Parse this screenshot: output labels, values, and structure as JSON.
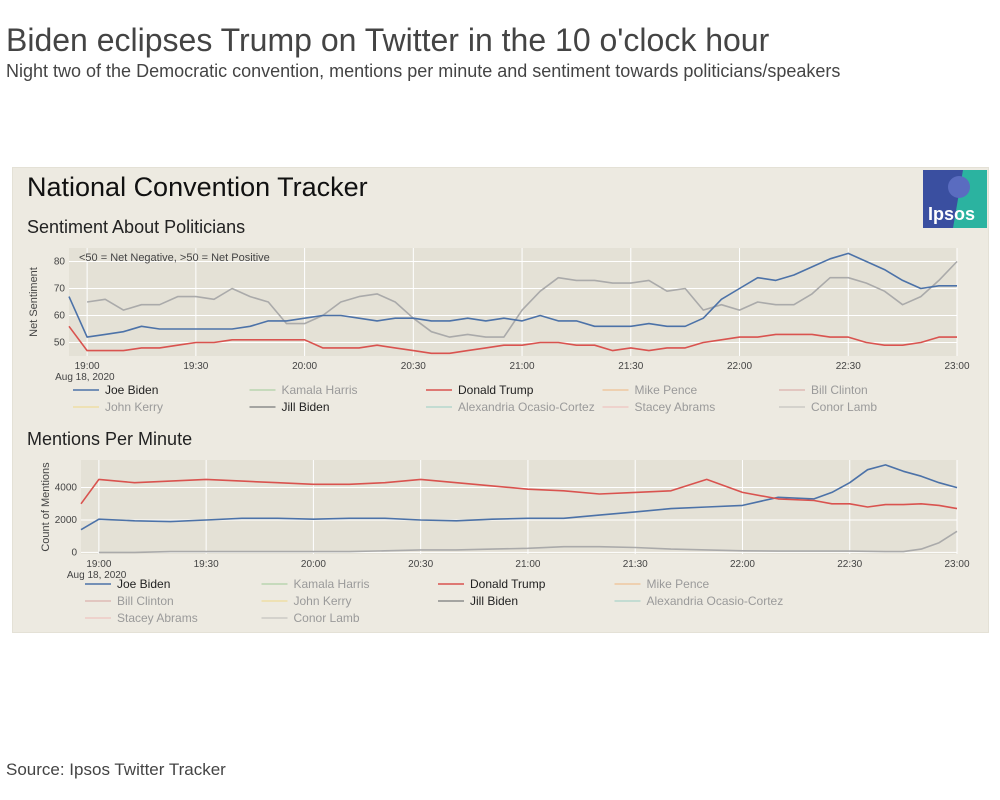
{
  "headline": "Biden eclipses Trump on Twitter in the 10 o'clock hour",
  "subhead": "Night two of the Democratic convention, mentions per minute and sentiment towards politicians/speakers",
  "source": "Source: Ipsos Twitter Tracker",
  "panel": {
    "title": "National Convention Tracker",
    "logo_text": "Ipsos",
    "logo_colors": [
      "#3a4fa0",
      "#2bb3a0"
    ]
  },
  "chart_data": [
    {
      "type": "line",
      "title": "Sentiment About Politicians",
      "ylabel": "Net Sentiment",
      "xlabel": "",
      "date_label": "Aug 18, 2020",
      "annotation": "<50 = Net Negative, >50 = Net Positive",
      "x_ticks": [
        "19:00",
        "19:30",
        "20:00",
        "20:30",
        "21:00",
        "21:30",
        "22:00",
        "22:30",
        "23:00"
      ],
      "x_range_minutes": [
        -5,
        240
      ],
      "ylim": [
        45,
        85
      ],
      "y_ticks": [
        50,
        60,
        70,
        80
      ],
      "grid": true,
      "legend_position": "bottom",
      "legend": [
        {
          "name": "Joe Biden",
          "color": "#4c72a8",
          "active": true
        },
        {
          "name": "Kamala Harris",
          "color": "#86c27e",
          "active": false
        },
        {
          "name": "Donald Trump",
          "color": "#d9534f",
          "active": true
        },
        {
          "name": "Mike Pence",
          "color": "#f0a860",
          "active": false
        },
        {
          "name": "Bill Clinton",
          "color": "#d08a8a",
          "active": false
        },
        {
          "name": "John Kerry",
          "color": "#f2d36b",
          "active": false
        },
        {
          "name": "Jill Biden",
          "color": "#8c8c8c",
          "active": true
        },
        {
          "name": "Alexandria Ocasio-Cortez",
          "color": "#7fc7b8",
          "active": false
        },
        {
          "name": "Stacey Abrams",
          "color": "#f2a9a9",
          "active": false
        },
        {
          "name": "Conor Lamb",
          "color": "#aaaaaa",
          "active": false
        }
      ],
      "series": [
        {
          "name": "Joe Biden",
          "color": "#4c72a8",
          "x": [
            -5,
            0,
            5,
            10,
            15,
            20,
            25,
            30,
            35,
            40,
            45,
            50,
            55,
            60,
            65,
            70,
            75,
            80,
            85,
            90,
            95,
            100,
            105,
            110,
            115,
            120,
            125,
            130,
            135,
            140,
            145,
            150,
            155,
            160,
            165,
            170,
            175,
            180,
            185,
            190,
            195,
            200,
            205,
            210,
            215,
            220,
            225,
            230,
            235,
            240
          ],
          "y": [
            67,
            52,
            53,
            54,
            56,
            55,
            55,
            55,
            55,
            55,
            56,
            58,
            58,
            59,
            60,
            60,
            59,
            58,
            59,
            59,
            58,
            58,
            59,
            58,
            59,
            58,
            60,
            58,
            58,
            56,
            56,
            56,
            57,
            56,
            56,
            59,
            66,
            70,
            74,
            73,
            75,
            78,
            81,
            83,
            80,
            77,
            73,
            70,
            71,
            71
          ]
        },
        {
          "name": "Donald Trump",
          "color": "#d9534f",
          "x": [
            -5,
            0,
            5,
            10,
            15,
            20,
            25,
            30,
            35,
            40,
            45,
            50,
            55,
            60,
            65,
            70,
            75,
            80,
            85,
            90,
            95,
            100,
            105,
            110,
            115,
            120,
            125,
            130,
            135,
            140,
            145,
            150,
            155,
            160,
            165,
            170,
            175,
            180,
            185,
            190,
            195,
            200,
            205,
            210,
            215,
            220,
            225,
            230,
            235,
            240
          ],
          "y": [
            56,
            47,
            47,
            47,
            48,
            48,
            49,
            50,
            50,
            51,
            51,
            51,
            51,
            51,
            48,
            48,
            48,
            49,
            48,
            47,
            46,
            46,
            47,
            48,
            49,
            49,
            50,
            50,
            49,
            49,
            47,
            48,
            47,
            48,
            48,
            50,
            51,
            52,
            52,
            53,
            53,
            53,
            52,
            52,
            50,
            49,
            49,
            50,
            52,
            52
          ]
        },
        {
          "name": "Jill Biden",
          "color": "#aaaaaa",
          "x": [
            0,
            5,
            10,
            15,
            20,
            25,
            30,
            35,
            40,
            45,
            50,
            55,
            60,
            65,
            70,
            75,
            80,
            85,
            90,
            95,
            100,
            105,
            110,
            115,
            120,
            125,
            130,
            135,
            140,
            145,
            150,
            155,
            160,
            165,
            170,
            175,
            180,
            185,
            190,
            195,
            200,
            205,
            210,
            215,
            220,
            225,
            230,
            235,
            240
          ],
          "y": [
            65,
            66,
            62,
            64,
            64,
            67,
            67,
            66,
            70,
            67,
            65,
            57,
            57,
            60,
            65,
            67,
            68,
            65,
            59,
            54,
            52,
            53,
            52,
            52,
            62,
            69,
            74,
            73,
            73,
            72,
            72,
            73,
            69,
            70,
            62,
            64,
            62,
            65,
            64,
            64,
            68,
            74,
            74,
            72,
            69,
            64,
            67,
            73,
            80
          ]
        }
      ]
    },
    {
      "type": "line",
      "title": "Mentions Per Minute",
      "ylabel": "Count of Mentions",
      "xlabel": "",
      "date_label": "Aug 18, 2020",
      "x_ticks": [
        "19:00",
        "19:30",
        "20:00",
        "20:30",
        "21:00",
        "21:30",
        "22:00",
        "22:30",
        "23:00"
      ],
      "x_range_minutes": [
        -5,
        240
      ],
      "ylim": [
        -100,
        5700
      ],
      "y_ticks": [
        0,
        2000,
        4000
      ],
      "grid": true,
      "legend_position": "bottom",
      "legend": [
        {
          "name": "Joe Biden",
          "color": "#4c72a8",
          "active": true
        },
        {
          "name": "Kamala Harris",
          "color": "#86c27e",
          "active": false
        },
        {
          "name": "Donald Trump",
          "color": "#d9534f",
          "active": true
        },
        {
          "name": "Mike Pence",
          "color": "#f0a860",
          "active": false
        },
        {
          "name": "Bill Clinton",
          "color": "#d08a8a",
          "active": false
        },
        {
          "name": "John Kerry",
          "color": "#f2d36b",
          "active": false
        },
        {
          "name": "Jill Biden",
          "color": "#8c8c8c",
          "active": true
        },
        {
          "name": "Alexandria Ocasio-Cortez",
          "color": "#7fc7b8",
          "active": false
        },
        {
          "name": "Stacey Abrams",
          "color": "#f2a9a9",
          "active": false
        },
        {
          "name": "Conor Lamb",
          "color": "#aaaaaa",
          "active": false
        }
      ],
      "series": [
        {
          "name": "Joe Biden",
          "color": "#4c72a8",
          "x": [
            -5,
            0,
            10,
            20,
            30,
            40,
            50,
            60,
            70,
            80,
            90,
            100,
            110,
            120,
            130,
            140,
            150,
            160,
            170,
            180,
            190,
            200,
            205,
            210,
            215,
            220,
            225,
            230,
            235,
            240
          ],
          "y": [
            1400,
            2050,
            1950,
            1900,
            2000,
            2100,
            2100,
            2050,
            2100,
            2100,
            2000,
            1950,
            2050,
            2100,
            2100,
            2300,
            2500,
            2700,
            2800,
            2900,
            3400,
            3300,
            3700,
            4300,
            5100,
            5400,
            5000,
            4700,
            4300,
            4000
          ]
        },
        {
          "name": "Donald Trump",
          "color": "#d9534f",
          "x": [
            -5,
            0,
            10,
            20,
            30,
            40,
            50,
            60,
            70,
            80,
            90,
            100,
            110,
            120,
            130,
            140,
            150,
            160,
            170,
            180,
            190,
            200,
            205,
            210,
            215,
            220,
            225,
            230,
            235,
            240
          ],
          "y": [
            3000,
            4500,
            4300,
            4400,
            4500,
            4400,
            4300,
            4200,
            4200,
            4300,
            4500,
            4300,
            4100,
            3900,
            3800,
            3600,
            3700,
            3800,
            4500,
            3700,
            3300,
            3200,
            3000,
            3000,
            2800,
            2950,
            2950,
            3000,
            2900,
            2700
          ]
        },
        {
          "name": "Jill Biden",
          "color": "#aaaaaa",
          "x": [
            0,
            10,
            20,
            30,
            40,
            50,
            60,
            70,
            80,
            90,
            100,
            110,
            120,
            130,
            140,
            150,
            160,
            170,
            180,
            190,
            200,
            210,
            220,
            225,
            230,
            235,
            240
          ],
          "y": [
            0,
            0,
            50,
            50,
            50,
            50,
            50,
            50,
            100,
            150,
            150,
            200,
            250,
            350,
            350,
            300,
            200,
            150,
            100,
            80,
            80,
            80,
            50,
            50,
            200,
            600,
            1300
          ]
        }
      ]
    }
  ]
}
